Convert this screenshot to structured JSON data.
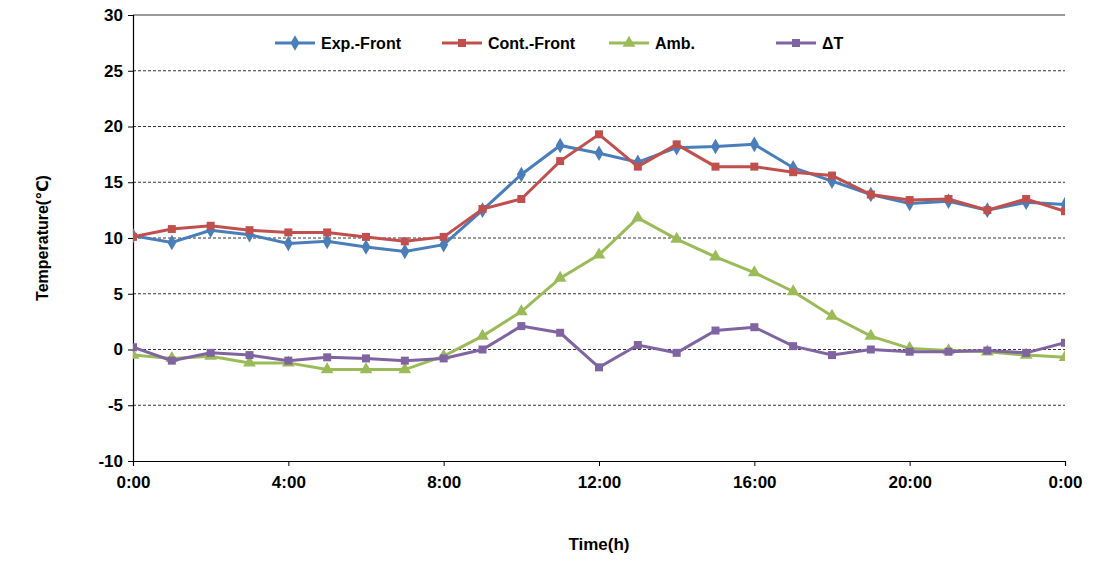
{
  "chart_data": {
    "type": "line",
    "x_label": "Time(h)",
    "y_label": "Temperature(℃)",
    "x": [
      0,
      1,
      2,
      3,
      4,
      5,
      6,
      7,
      8,
      9,
      10,
      11,
      12,
      13,
      14,
      15,
      16,
      17,
      18,
      19,
      20,
      21,
      22,
      23,
      24
    ],
    "xlim": [
      0,
      24
    ],
    "xticks": [
      {
        "value": 0,
        "label": "0:00"
      },
      {
        "value": 4,
        "label": "4:00"
      },
      {
        "value": 8,
        "label": "8:00"
      },
      {
        "value": 12,
        "label": "12:00"
      },
      {
        "value": 16,
        "label": "16:00"
      },
      {
        "value": 20,
        "label": "20:00"
      },
      {
        "value": 24,
        "label": "0:00"
      }
    ],
    "ylim": [
      -10,
      30
    ],
    "yticks": [
      -10,
      -5,
      0,
      5,
      10,
      15,
      20,
      25,
      30
    ],
    "grid": true,
    "legend": "top",
    "series": [
      {
        "name": "Exp.-Front",
        "color": "#4a7ebb",
        "marker": "diamond",
        "values": [
          10.2,
          9.6,
          10.7,
          10.3,
          9.5,
          9.7,
          9.2,
          8.8,
          9.4,
          12.5,
          15.7,
          18.3,
          17.6,
          16.8,
          18.1,
          18.2,
          18.4,
          16.3,
          15.1,
          13.9,
          13.1,
          13.3,
          12.5,
          13.2,
          13.0
        ]
      },
      {
        "name": "Cont.-Front",
        "color": "#c0504d",
        "marker": "square",
        "values": [
          10.1,
          10.8,
          11.1,
          10.7,
          10.5,
          10.5,
          10.1,
          9.7,
          10.1,
          12.6,
          13.5,
          16.9,
          19.3,
          16.4,
          18.4,
          16.4,
          16.4,
          15.9,
          15.6,
          13.9,
          13.4,
          13.5,
          12.5,
          13.5,
          12.4
        ]
      },
      {
        "name": "Amb.",
        "color": "#9bbb59",
        "marker": "triangle",
        "values": [
          -0.5,
          -0.8,
          -0.6,
          -1.2,
          -1.2,
          -1.8,
          -1.8,
          -1.8,
          -0.6,
          1.2,
          3.4,
          6.4,
          8.5,
          11.8,
          9.9,
          8.3,
          6.9,
          5.2,
          3.0,
          1.2,
          0.1,
          -0.1,
          -0.2,
          -0.5,
          -0.7
        ]
      },
      {
        "name": "ΔT",
        "color": "#8064a2",
        "marker": "square",
        "values": [
          0.2,
          -1.0,
          -0.3,
          -0.5,
          -1.0,
          -0.7,
          -0.8,
          -1.0,
          -0.8,
          0.0,
          2.1,
          1.5,
          -1.6,
          0.4,
          -0.3,
          1.7,
          2.0,
          0.3,
          -0.5,
          0.0,
          -0.2,
          -0.2,
          -0.1,
          -0.3,
          0.6
        ]
      }
    ]
  }
}
